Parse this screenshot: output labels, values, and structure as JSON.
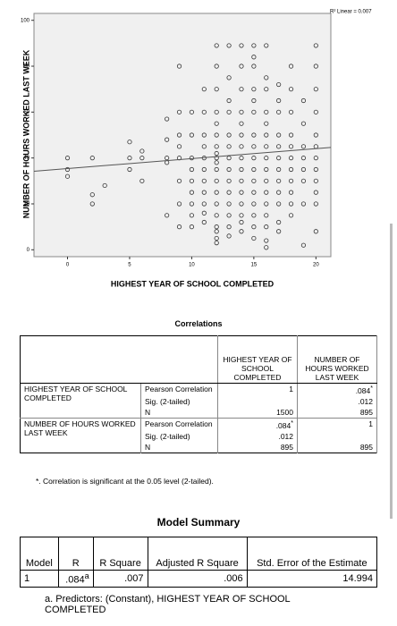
{
  "chart_data": {
    "type": "scatter",
    "ylabel": "NUMBER OF HOURS WORKED LAST WEEK",
    "xlabel": "HIGHEST YEAR OF SCHOOL COMPLETED",
    "annotation": "R² Linear = 0.007",
    "xlim": [
      -2.7,
      21.2
    ],
    "ylim": [
      -3,
      103
    ],
    "xticks": [
      0,
      5,
      10,
      15,
      20
    ],
    "yticks": [
      0,
      20,
      40,
      60,
      80,
      100
    ],
    "series": [
      {
        "color": "#333333",
        "x": [
          0,
          0,
          0,
          2,
          2,
          2,
          3,
          5,
          5,
          5,
          6,
          6,
          6,
          8,
          8,
          8,
          8,
          8,
          9,
          9,
          9,
          9,
          9,
          9,
          9,
          9,
          10,
          10,
          10,
          10,
          10,
          10,
          10,
          10,
          10,
          11,
          11,
          11,
          11,
          11,
          11,
          11,
          11,
          11,
          11,
          11,
          12,
          12,
          12,
          12,
          12,
          12,
          12,
          12,
          12,
          12,
          12,
          12,
          12,
          12,
          12,
          12,
          12,
          12,
          12,
          13,
          13,
          13,
          13,
          13,
          13,
          13,
          13,
          13,
          13,
          13,
          13,
          13,
          13,
          14,
          14,
          14,
          14,
          14,
          14,
          14,
          14,
          14,
          14,
          14,
          14,
          14,
          14,
          14,
          15,
          15,
          15,
          15,
          15,
          15,
          15,
          15,
          15,
          15,
          15,
          15,
          15,
          15,
          15,
          15,
          16,
          16,
          16,
          16,
          16,
          16,
          16,
          16,
          16,
          16,
          16,
          16,
          16,
          16,
          16,
          16,
          17,
          17,
          17,
          17,
          17,
          17,
          17,
          17,
          17,
          17,
          17,
          17,
          18,
          18,
          18,
          18,
          18,
          18,
          18,
          18,
          18,
          18,
          18,
          19,
          19,
          19,
          19,
          19,
          19,
          19,
          19,
          20,
          20,
          20,
          20,
          20,
          20,
          20,
          20,
          20,
          20,
          20,
          20
        ],
        "values": [
          40,
          35,
          32,
          40,
          24,
          20,
          28,
          47,
          40,
          35,
          43,
          40,
          30,
          57,
          48,
          40,
          38,
          15,
          80,
          60,
          50,
          45,
          40,
          30,
          20,
          10,
          60,
          50,
          40,
          35,
          30,
          25,
          20,
          15,
          10,
          70,
          60,
          50,
          45,
          40,
          35,
          30,
          25,
          20,
          16,
          12,
          89,
          80,
          70,
          60,
          55,
          50,
          45,
          42,
          40,
          38,
          35,
          30,
          25,
          20,
          15,
          10,
          8,
          5,
          3,
          89,
          75,
          65,
          60,
          50,
          45,
          40,
          35,
          30,
          25,
          20,
          15,
          10,
          6,
          89,
          80,
          70,
          60,
          55,
          50,
          45,
          40,
          35,
          30,
          25,
          20,
          15,
          12,
          8,
          89,
          84,
          80,
          70,
          65,
          60,
          50,
          45,
          40,
          35,
          30,
          25,
          20,
          15,
          10,
          5,
          89,
          75,
          70,
          60,
          55,
          50,
          45,
          40,
          35,
          30,
          25,
          20,
          15,
          10,
          4,
          1,
          72,
          65,
          60,
          50,
          45,
          40,
          35,
          30,
          25,
          20,
          12,
          8,
          80,
          70,
          60,
          50,
          45,
          40,
          35,
          30,
          25,
          20,
          15,
          65,
          55,
          45,
          40,
          35,
          30,
          20,
          2,
          89,
          80,
          70,
          60,
          50,
          45,
          40,
          35,
          30,
          25,
          20,
          8
        ]
      }
    ],
    "fit_line": {
      "color": "#555555",
      "x": [
        -2.7,
        21.2
      ],
      "values": [
        34.2,
        44.6
      ]
    }
  },
  "correlations": {
    "title": "Correlations",
    "header": [
      null,
      "HIGHEST YEAR OF SCHOOL COMPLETED",
      "NUMBER OF HOURS WORKED LAST WEEK"
    ],
    "groups": [
      {
        "label": "HIGHEST YEAR OF SCHOOL COMPLETED",
        "rows": [
          [
            "Pearson Correlation",
            "1",
            {
              "text": ".084",
              "sup": "*"
            }
          ],
          [
            "Sig. (2-tailed)",
            null,
            ".012"
          ],
          [
            "N",
            "1500",
            "895"
          ]
        ]
      },
      {
        "label": "NUMBER OF HOURS WORKED LAST WEEK",
        "rows": [
          [
            "Pearson Correlation",
            {
              "text": ".084",
              "sup": "*"
            },
            "1"
          ],
          [
            "Sig. (2-tailed)",
            ".012",
            null
          ],
          [
            "N",
            "895",
            "895"
          ]
        ]
      }
    ],
    "footnote": "*. Correlation is significant at the 0.05 level (2-tailed)."
  },
  "model_summary": {
    "title": "Model Summary",
    "header": [
      "Model",
      "R",
      "R Square",
      "Adjusted R Square",
      "Std. Error of the Estimate"
    ],
    "rows": [
      [
        "1",
        {
          "text": ".084",
          "sup": "a"
        },
        ".007",
        ".006",
        "14.994"
      ]
    ],
    "footnote": "a. Predictors: (Constant), HIGHEST YEAR OF SCHOOL COMPLETED"
  }
}
